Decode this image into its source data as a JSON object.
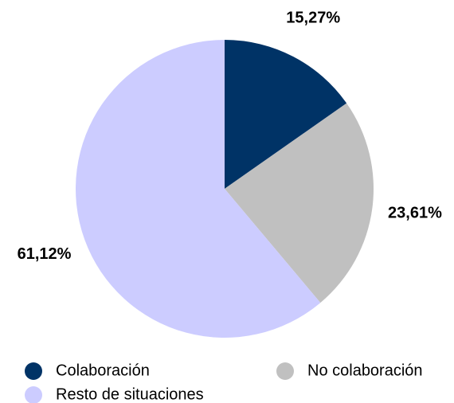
{
  "chart_data": {
    "type": "pie",
    "categories": [
      "Colaboración",
      "No colaboración",
      "Resto de situaciones"
    ],
    "values": [
      15.27,
      23.61,
      61.12
    ],
    "value_labels": [
      "15,27%",
      "23,61%",
      "61,12%"
    ],
    "colors": [
      "#003366",
      "#c0c0c0",
      "#ccccff"
    ]
  }
}
